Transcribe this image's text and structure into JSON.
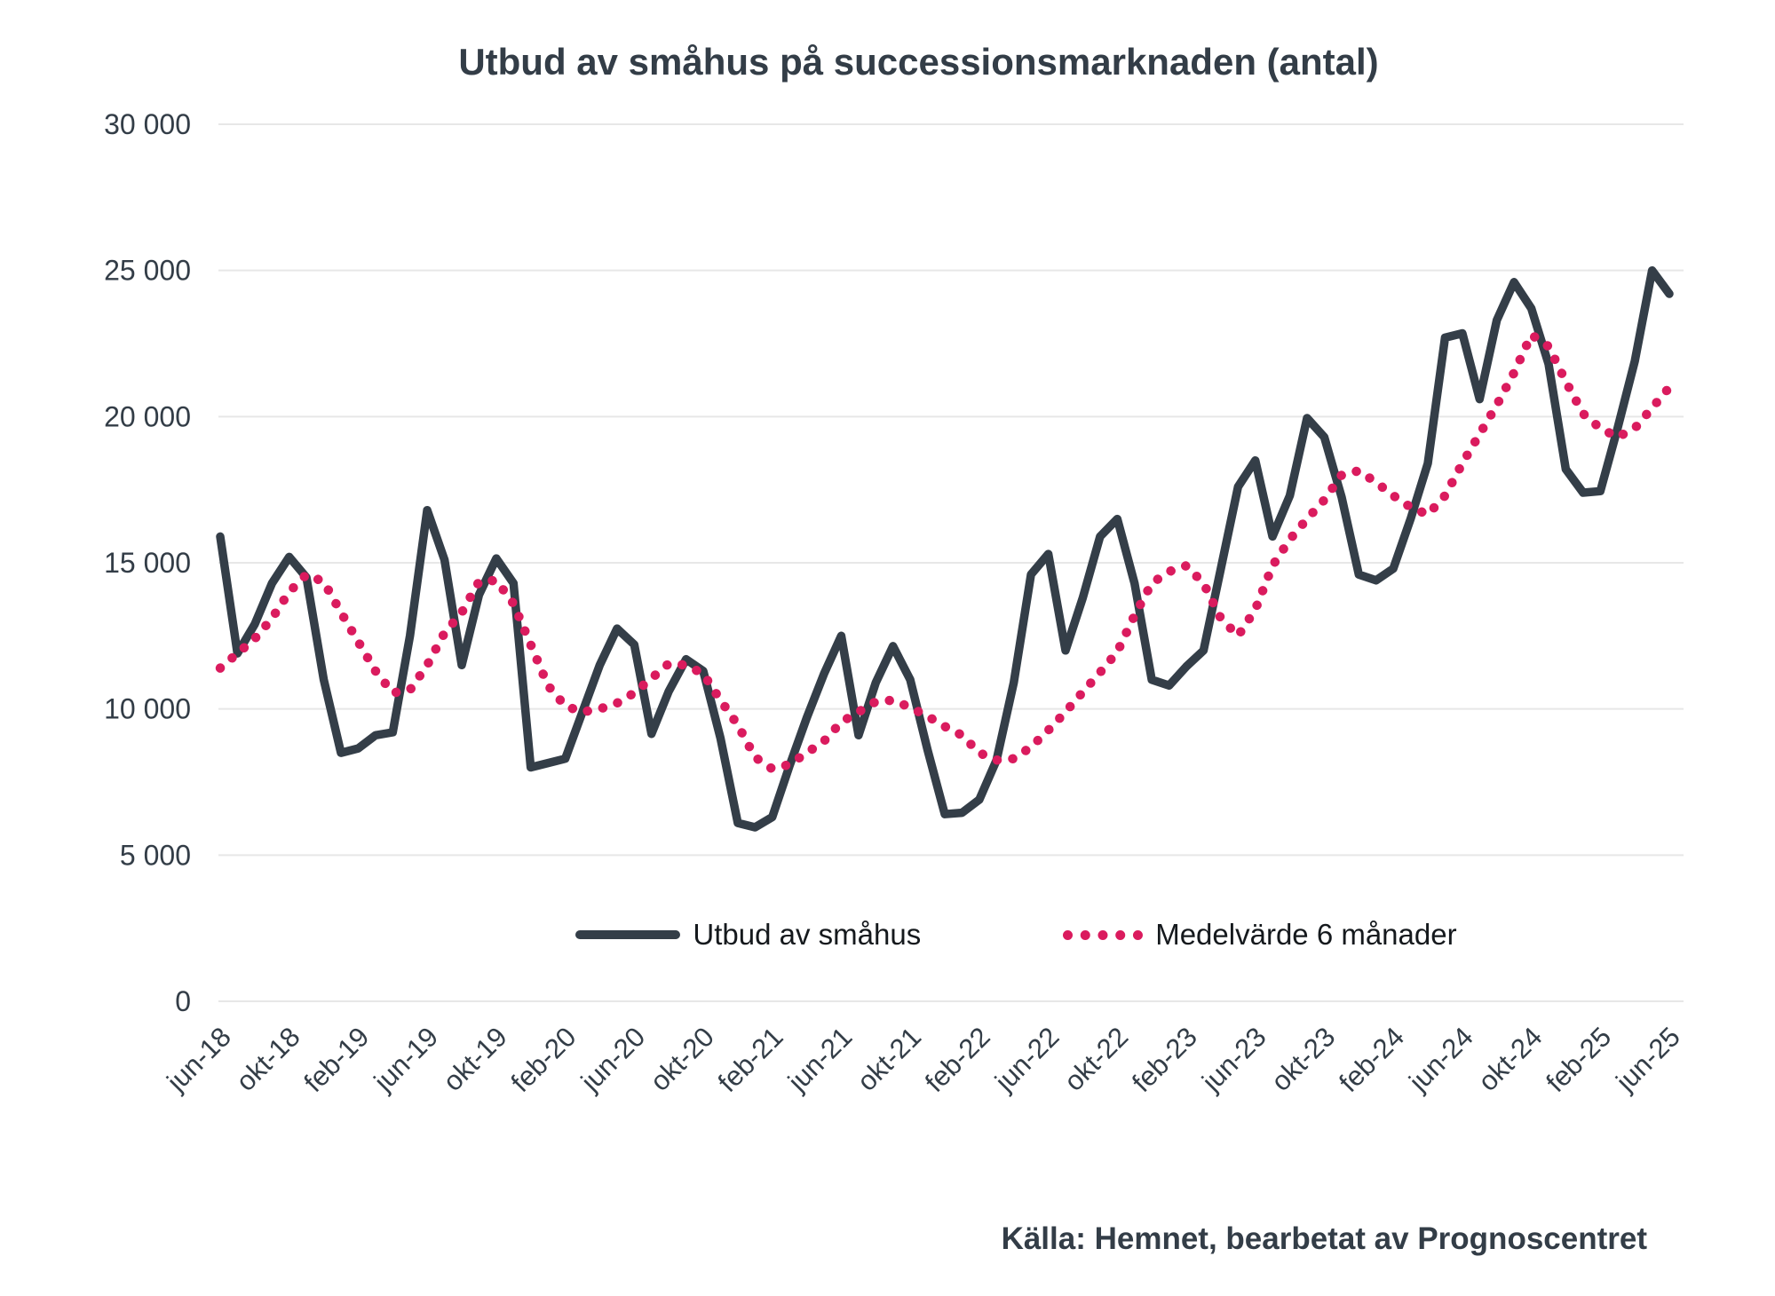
{
  "title": "Utbud av småhus på successionsmarknaden (antal)",
  "source": "Källa: Hemnet, bearbetat av Prognoscentret",
  "colors": {
    "text": "#333d47",
    "gridline": "#e7e7e7",
    "series_utbud": "#343e48",
    "series_medelvarde": "#da1b5e",
    "background": "#ffffff"
  },
  "chart_data": {
    "type": "line",
    "title": "Utbud av småhus på successionsmarknaden (antal)",
    "xlabel": "",
    "ylabel": "",
    "ylim": [
      0,
      30000
    ],
    "grid": "horizontal",
    "legend_position": "bottom",
    "x_frequency": "monthly",
    "x_start": "jun-18",
    "x_end": "jun-25",
    "y_ticks": [
      {
        "value": 0,
        "label": "0"
      },
      {
        "value": 5000,
        "label": "5 000"
      },
      {
        "value": 10000,
        "label": "10 000"
      },
      {
        "value": 15000,
        "label": "15 000"
      },
      {
        "value": 20000,
        "label": "20 000"
      },
      {
        "value": 25000,
        "label": "25 000"
      },
      {
        "value": 30000,
        "label": "30 000"
      }
    ],
    "x_ticks": [
      {
        "label": "jun-18",
        "month_index": 0
      },
      {
        "label": "okt-18",
        "month_index": 4
      },
      {
        "label": "feb-19",
        "month_index": 8
      },
      {
        "label": "jun-19",
        "month_index": 12
      },
      {
        "label": "okt-19",
        "month_index": 16
      },
      {
        "label": "feb-20",
        "month_index": 20
      },
      {
        "label": "jun-20",
        "month_index": 24
      },
      {
        "label": "okt-20",
        "month_index": 28
      },
      {
        "label": "feb-21",
        "month_index": 32
      },
      {
        "label": "jun-21",
        "month_index": 36
      },
      {
        "label": "okt-21",
        "month_index": 40
      },
      {
        "label": "feb-22",
        "month_index": 44
      },
      {
        "label": "jun-22",
        "month_index": 48
      },
      {
        "label": "okt-22",
        "month_index": 52
      },
      {
        "label": "feb-23",
        "month_index": 56
      },
      {
        "label": "jun-23",
        "month_index": 60
      },
      {
        "label": "okt-23",
        "month_index": 64
      },
      {
        "label": "feb-24",
        "month_index": 68
      },
      {
        "label": "jun-24",
        "month_index": 72
      },
      {
        "label": "okt-24",
        "month_index": 76
      },
      {
        "label": "feb-25",
        "month_index": 80
      },
      {
        "label": "jun-25",
        "month_index": 84
      }
    ],
    "series": [
      {
        "name": "Utbud av småhus",
        "style": "solid",
        "color": "#343e48",
        "values": [
          15900,
          11900,
          12900,
          14300,
          15200,
          14500,
          11000,
          8500,
          8650,
          9100,
          9200,
          12500,
          16800,
          15100,
          11500,
          13900,
          15150,
          14300,
          8000,
          8150,
          8300,
          9900,
          11500,
          12750,
          12200,
          9150,
          10600,
          11700,
          11300,
          9000,
          6100,
          5950,
          6300,
          8050,
          9700,
          11200,
          12500,
          9100,
          10900,
          12150,
          11000,
          8600,
          6400,
          6450,
          6900,
          8250,
          10900,
          14600,
          15300,
          12000,
          13800,
          15900,
          16500,
          14300,
          11000,
          10800,
          11450,
          12000,
          14800,
          17600,
          18500,
          15900,
          17300,
          19950,
          19300,
          17250,
          14600,
          14400,
          14800,
          16500,
          18400,
          22700,
          22850,
          20600,
          23300,
          24600,
          23700,
          21800,
          18200,
          17400,
          17450,
          19600,
          21900,
          25000,
          24200
        ]
      },
      {
        "name": "Medelvärde 6 månader",
        "style": "dotted",
        "color": "#da1b5e",
        "values": [
          11400,
          11900,
          12400,
          13100,
          14000,
          14600,
          14350,
          13300,
          12300,
          11300,
          10550,
          10650,
          11500,
          12600,
          13300,
          14350,
          14400,
          13600,
          12200,
          10800,
          10100,
          9900,
          10000,
          10200,
          10550,
          11050,
          11550,
          11500,
          11200,
          10300,
          9450,
          8350,
          7950,
          8100,
          8500,
          8900,
          9550,
          9900,
          10250,
          10300,
          10050,
          9750,
          9400,
          9100,
          8500,
          8250,
          8300,
          8700,
          9270,
          9900,
          10580,
          11250,
          11950,
          13200,
          14300,
          14700,
          14900,
          14300,
          13100,
          12500,
          13400,
          14900,
          15800,
          16500,
          17150,
          18000,
          18150,
          17750,
          17300,
          16900,
          16650,
          17300,
          18400,
          19400,
          20400,
          21500,
          22800,
          22400,
          21200,
          20100,
          19600,
          19300,
          19600,
          20300,
          21000
        ]
      }
    ]
  }
}
